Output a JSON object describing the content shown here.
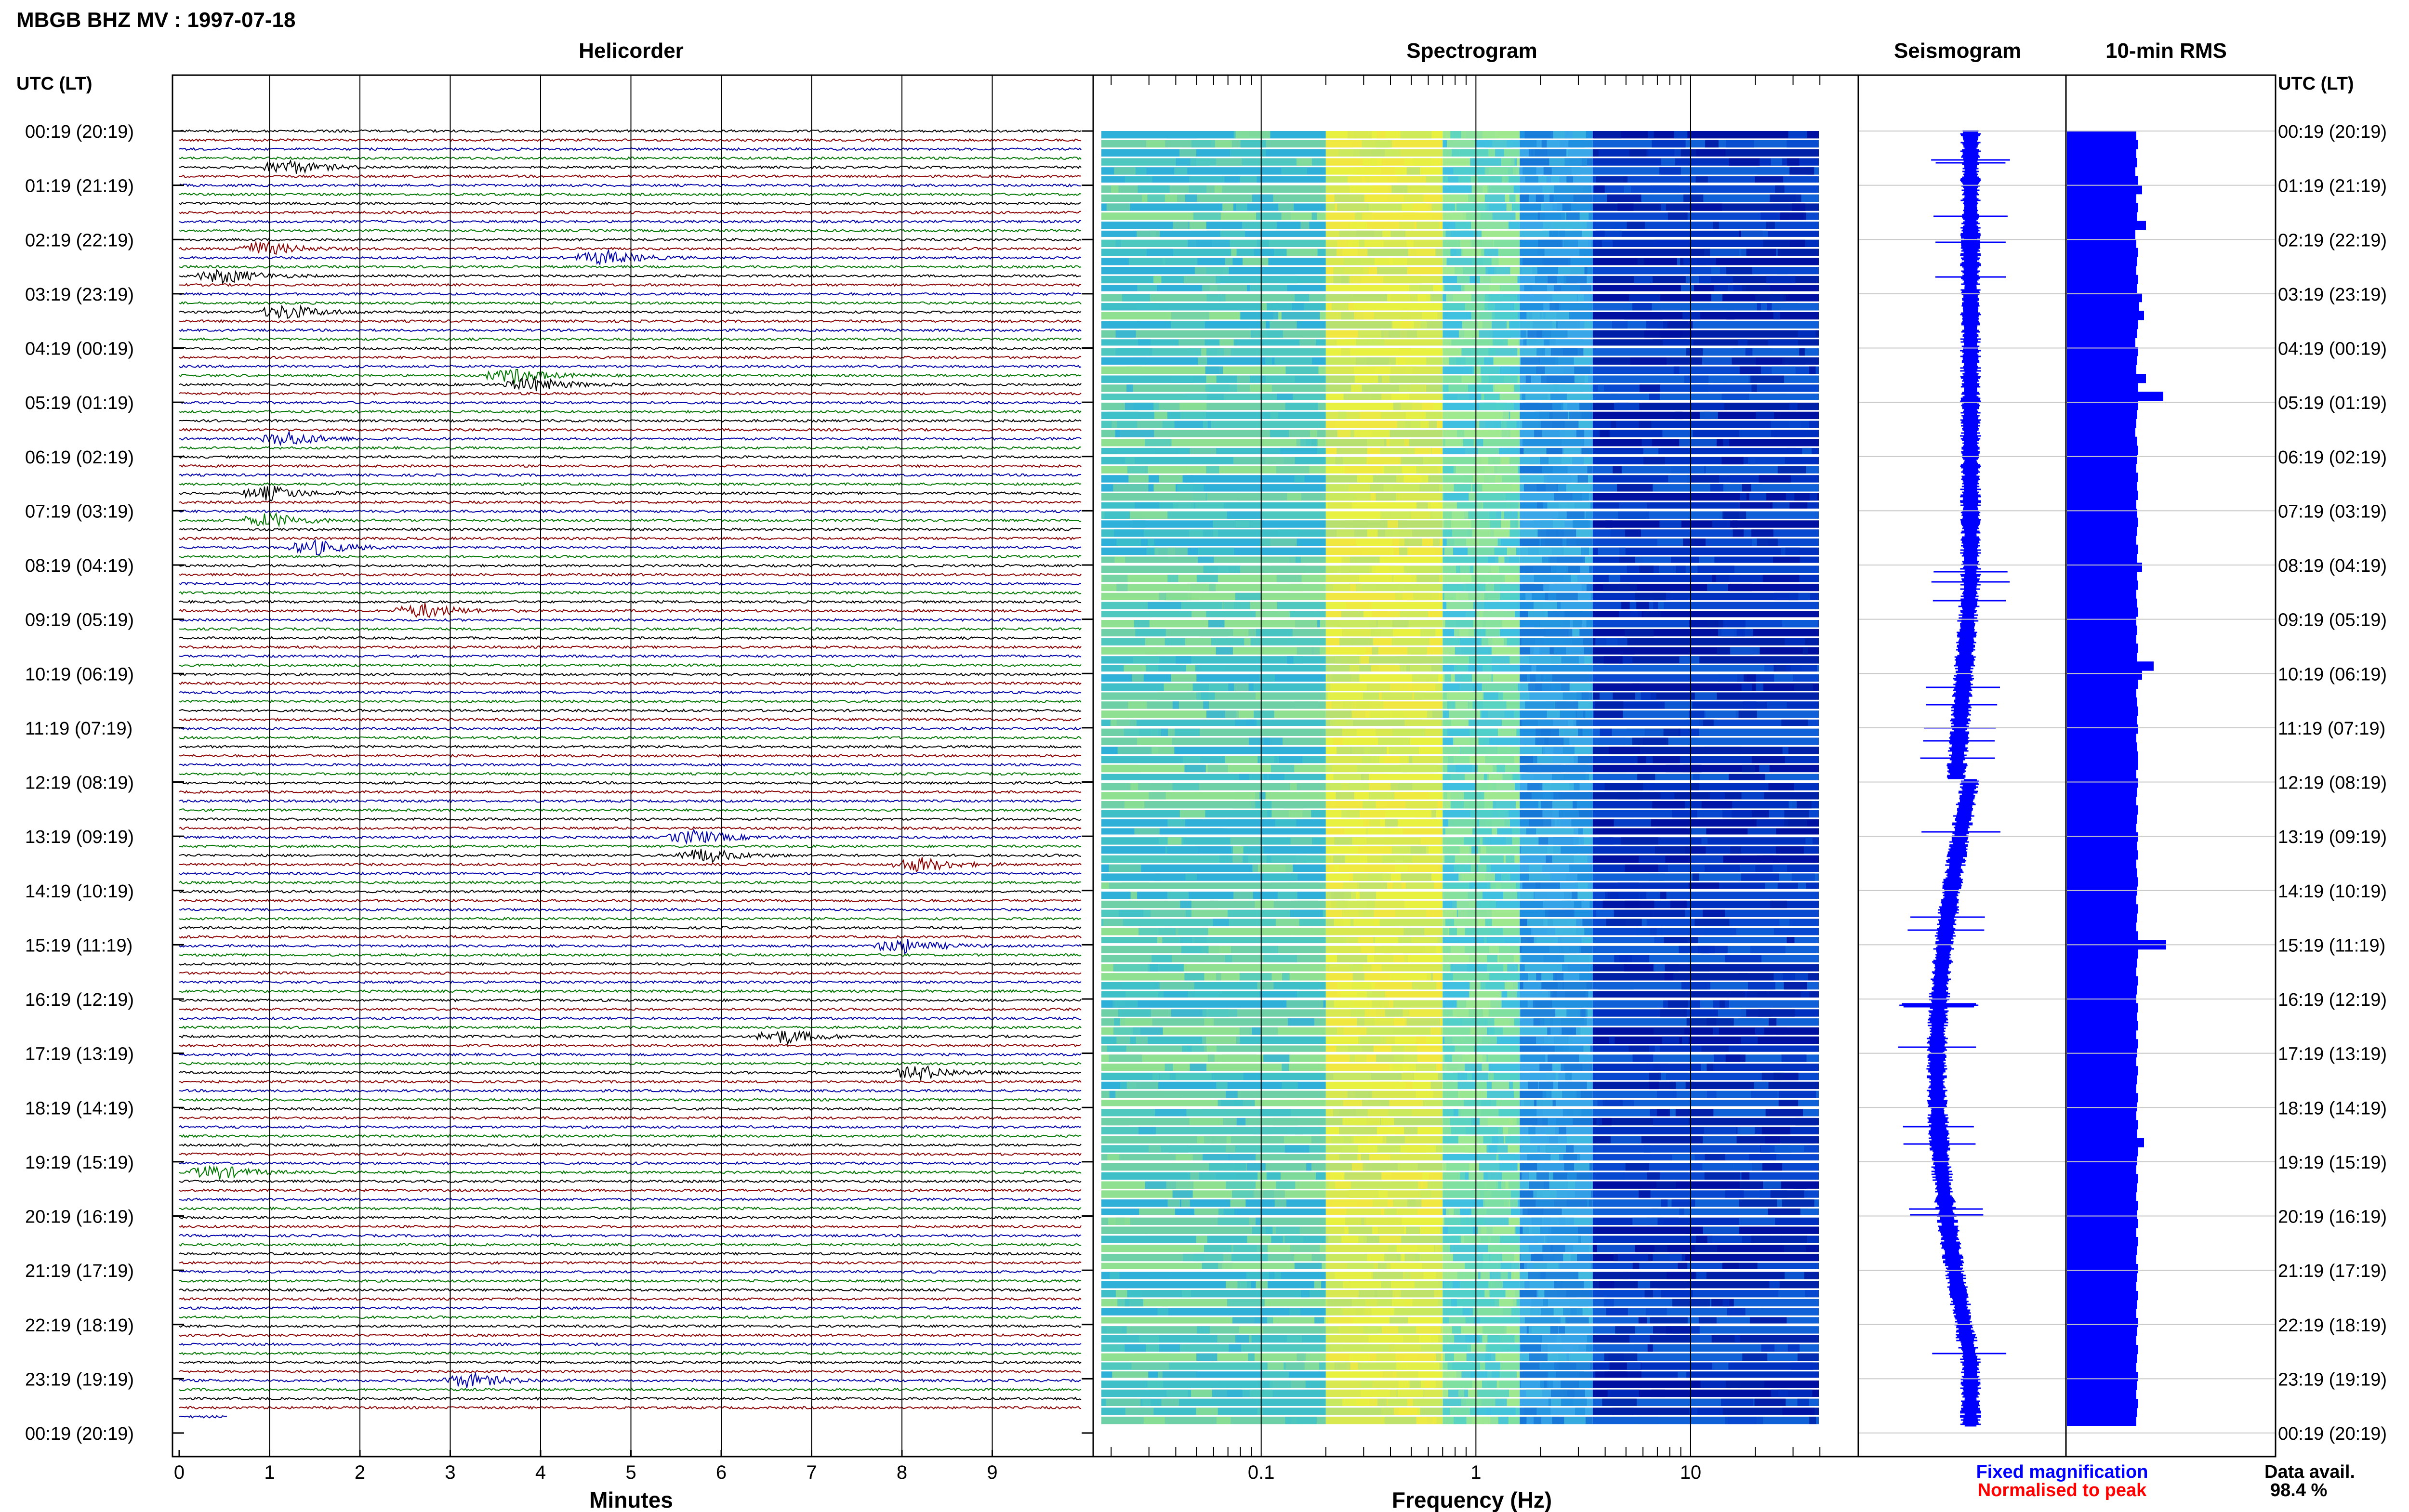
{
  "header": {
    "title": "MBGB BHZ MV : 1997-07-18"
  },
  "panels": {
    "helicorder": "Helicorder",
    "spectrogram": "Spectrogram",
    "seismogram": "Seismogram",
    "rms": "10-min RMS"
  },
  "axis": {
    "left_title": "UTC (LT)",
    "right_title": "UTC (LT)",
    "minutes_label": "Minutes",
    "minutes_ticks": [
      "0",
      "1",
      "2",
      "3",
      "4",
      "5",
      "6",
      "7",
      "8",
      "9"
    ],
    "frequency_label": "Frequency (Hz)",
    "frequency_ticks": [
      "0.1",
      "1",
      "10"
    ],
    "time_labels": [
      "00:19 (20:19)",
      "01:19 (21:19)",
      "02:19 (22:19)",
      "03:19 (23:19)",
      "04:19 (00:19)",
      "05:19 (01:19)",
      "06:19 (02:19)",
      "07:19 (03:19)",
      "08:19 (04:19)",
      "09:19 (05:19)",
      "10:19 (06:19)",
      "11:19 (07:19)",
      "12:19 (08:19)",
      "13:19 (09:19)",
      "14:19 (10:19)",
      "15:19 (11:19)",
      "16:19 (12:19)",
      "17:19 (13:19)",
      "18:19 (14:19)",
      "19:19 (15:19)",
      "20:19 (16:19)",
      "21:19 (17:19)",
      "22:19 (18:19)",
      "23:19 (19:19)",
      "00:19 (20:19)"
    ]
  },
  "legend": {
    "fixed": "Fixed magnification",
    "normalised": "Normalised to peak",
    "fixed_color": "#0000ff",
    "normalised_color": "#ff0000"
  },
  "data_avail": {
    "label": "Data avail.",
    "value": "98.4 %"
  },
  "chart_data": {
    "type": "helicorder",
    "trace_colors": [
      "#000000",
      "#8b0000",
      "#0000aa",
      "#007700"
    ],
    "spectrogram_range_hz": [
      0.03,
      50
    ],
    "rms_bar_color": "#0000ff",
    "seismogram_color": "#0000ff",
    "rms_relative": [
      0.72,
      0.74,
      0.72,
      0.73,
      0.71,
      0.74,
      0.78,
      0.72,
      0.74,
      0.73,
      0.82,
      0.71,
      0.72,
      0.74,
      0.73,
      0.72,
      0.74,
      0.73,
      0.78,
      0.75,
      0.8,
      0.74,
      0.73,
      0.71,
      0.74,
      0.73,
      0.72,
      0.82,
      0.74,
      1.0,
      0.74,
      0.73,
      0.72,
      0.71,
      0.73,
      0.74,
      0.73,
      0.72,
      0.74,
      0.73,
      0.74,
      0.72,
      0.73,
      0.74,
      0.73,
      0.72,
      0.74,
      0.73,
      0.78,
      0.73,
      0.74,
      0.72,
      0.73,
      0.74,
      0.72,
      0.73,
      0.72,
      0.74,
      0.73,
      0.9,
      0.78,
      0.74,
      0.72,
      0.73,
      0.74,
      0.73,
      0.74,
      0.72,
      0.73,
      0.74,
      0.74,
      0.72,
      0.74,
      0.73,
      0.72,
      0.74,
      0.73,
      0.72,
      0.74,
      0.73,
      0.74,
      0.72,
      0.73,
      0.74,
      0.73,
      0.72,
      0.74,
      0.73,
      0.72,
      0.74,
      1.03,
      0.74,
      0.73,
      0.72,
      0.74,
      0.73,
      0.72,
      0.74,
      0.73,
      0.74,
      0.72,
      0.74,
      0.73,
      0.72,
      0.74,
      0.73,
      0.72,
      0.74,
      0.73,
      0.72,
      0.74,
      0.73,
      0.8,
      0.74,
      0.73,
      0.72,
      0.74,
      0.73,
      0.72,
      0.74,
      0.73,
      0.74,
      0.72,
      0.74,
      0.73,
      0.72,
      0.74,
      0.73,
      0.72,
      0.74,
      0.73,
      0.72,
      0.74,
      0.73,
      0.72,
      0.74,
      0.73,
      0.72,
      0.74,
      0.73,
      0.72,
      0.74,
      0.73,
      0.72
    ]
  }
}
